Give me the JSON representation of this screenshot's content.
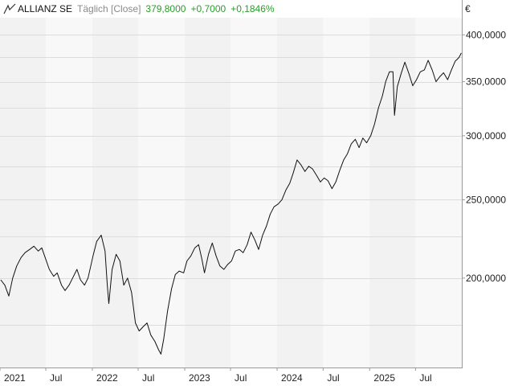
{
  "header": {
    "instrument": "ALLIANZ SE",
    "interval": "Täglich [Close]",
    "price": "379,8000",
    "change": "+0,7000",
    "change_pct": "+0,1846%",
    "chart_icon": "line-chart-icon",
    "positive_color": "#2a9c2a"
  },
  "chart_data": {
    "type": "line",
    "currency": "€",
    "y_scale": "log",
    "ylim": [
      155,
      420
    ],
    "xlim": [
      "2021-01-01",
      "2025-12-31"
    ],
    "y_ticks": [
      {
        "value": 200,
        "label": "200,0000"
      },
      {
        "value": 250,
        "label": "250,0000"
      },
      {
        "value": 300,
        "label": "300,0000"
      },
      {
        "value": 350,
        "label": "350,0000"
      },
      {
        "value": 400,
        "label": "400,0000"
      }
    ],
    "x_ticks": [
      {
        "date": "2021-01-01",
        "label": "2021"
      },
      {
        "date": "2021-07-01",
        "label": "Jul"
      },
      {
        "date": "2022-01-01",
        "label": "2022"
      },
      {
        "date": "2022-07-01",
        "label": "Jul"
      },
      {
        "date": "2023-01-01",
        "label": "2023"
      },
      {
        "date": "2023-07-01",
        "label": "Jul"
      },
      {
        "date": "2024-01-01",
        "label": "2024"
      },
      {
        "date": "2024-07-01",
        "label": "Jul"
      },
      {
        "date": "2025-01-01",
        "label": "2025"
      },
      {
        "date": "2025-07-01",
        "label": "Jul"
      }
    ],
    "grid": true,
    "series": [
      {
        "line_color": "#111111",
        "points": [
          [
            "2021-01-04",
            199
          ],
          [
            "2021-01-20",
            196
          ],
          [
            "2021-02-05",
            190
          ],
          [
            "2021-02-20",
            200
          ],
          [
            "2021-03-08",
            207
          ],
          [
            "2021-03-25",
            212
          ],
          [
            "2021-04-10",
            215
          ],
          [
            "2021-04-28",
            217
          ],
          [
            "2021-05-15",
            219
          ],
          [
            "2021-06-01",
            216
          ],
          [
            "2021-06-15",
            218
          ],
          [
            "2021-07-01",
            211
          ],
          [
            "2021-07-15",
            205
          ],
          [
            "2021-08-01",
            201
          ],
          [
            "2021-08-15",
            203
          ],
          [
            "2021-09-01",
            196
          ],
          [
            "2021-09-15",
            193
          ],
          [
            "2021-10-01",
            196
          ],
          [
            "2021-10-15",
            200
          ],
          [
            "2021-11-01",
            205
          ],
          [
            "2021-11-15",
            199
          ],
          [
            "2021-12-01",
            196
          ],
          [
            "2021-12-15",
            200
          ],
          [
            "2022-01-05",
            214
          ],
          [
            "2022-01-18",
            222
          ],
          [
            "2022-02-05",
            226
          ],
          [
            "2022-02-20",
            216
          ],
          [
            "2022-03-01",
            196
          ],
          [
            "2022-03-07",
            186
          ],
          [
            "2022-03-20",
            205
          ],
          [
            "2022-04-05",
            214
          ],
          [
            "2022-04-20",
            210
          ],
          [
            "2022-05-05",
            196
          ],
          [
            "2022-05-20",
            200
          ],
          [
            "2022-06-05",
            192
          ],
          [
            "2022-06-20",
            176
          ],
          [
            "2022-07-05",
            172
          ],
          [
            "2022-07-20",
            174
          ],
          [
            "2022-08-05",
            176
          ],
          [
            "2022-08-20",
            170
          ],
          [
            "2022-09-05",
            167
          ],
          [
            "2022-09-20",
            163
          ],
          [
            "2022-09-29",
            161
          ],
          [
            "2022-10-10",
            168
          ],
          [
            "2022-10-25",
            182
          ],
          [
            "2022-11-10",
            194
          ],
          [
            "2022-11-25",
            202
          ],
          [
            "2022-12-10",
            204
          ],
          [
            "2022-12-28",
            203
          ],
          [
            "2023-01-10",
            210
          ],
          [
            "2023-01-25",
            213
          ],
          [
            "2023-02-10",
            218
          ],
          [
            "2023-02-25",
            220
          ],
          [
            "2023-03-10",
            211
          ],
          [
            "2023-03-20",
            203
          ],
          [
            "2023-04-05",
            214
          ],
          [
            "2023-04-20",
            221
          ],
          [
            "2023-05-05",
            213
          ],
          [
            "2023-05-20",
            207
          ],
          [
            "2023-06-05",
            205
          ],
          [
            "2023-06-20",
            208
          ],
          [
            "2023-07-05",
            210
          ],
          [
            "2023-07-20",
            216
          ],
          [
            "2023-08-05",
            217
          ],
          [
            "2023-08-20",
            215
          ],
          [
            "2023-09-05",
            220
          ],
          [
            "2023-09-20",
            228
          ],
          [
            "2023-10-05",
            223
          ],
          [
            "2023-10-20",
            217
          ],
          [
            "2023-11-05",
            226
          ],
          [
            "2023-11-20",
            232
          ],
          [
            "2023-12-05",
            240
          ],
          [
            "2023-12-20",
            245
          ],
          [
            "2024-01-05",
            247
          ],
          [
            "2024-01-20",
            250
          ],
          [
            "2024-02-05",
            257
          ],
          [
            "2024-02-20",
            262
          ],
          [
            "2024-03-05",
            270
          ],
          [
            "2024-03-20",
            280
          ],
          [
            "2024-04-05",
            276
          ],
          [
            "2024-04-20",
            271
          ],
          [
            "2024-05-05",
            275
          ],
          [
            "2024-05-20",
            273
          ],
          [
            "2024-06-05",
            268
          ],
          [
            "2024-06-20",
            263
          ],
          [
            "2024-07-05",
            266
          ],
          [
            "2024-07-20",
            264
          ],
          [
            "2024-08-05",
            258
          ],
          [
            "2024-08-20",
            263
          ],
          [
            "2024-09-05",
            272
          ],
          [
            "2024-09-20",
            280
          ],
          [
            "2024-10-05",
            285
          ],
          [
            "2024-10-20",
            293
          ],
          [
            "2024-11-05",
            297
          ],
          [
            "2024-11-20",
            290
          ],
          [
            "2024-12-05",
            298
          ],
          [
            "2024-12-20",
            294
          ],
          [
            "2025-01-05",
            300
          ],
          [
            "2025-01-20",
            310
          ],
          [
            "2025-02-05",
            325
          ],
          [
            "2025-02-20",
            336
          ],
          [
            "2025-03-05",
            350
          ],
          [
            "2025-03-20",
            360
          ],
          [
            "2025-04-03",
            360
          ],
          [
            "2025-04-09",
            318
          ],
          [
            "2025-04-20",
            345
          ],
          [
            "2025-05-05",
            358
          ],
          [
            "2025-05-20",
            370
          ],
          [
            "2025-06-05",
            358
          ],
          [
            "2025-06-20",
            346
          ],
          [
            "2025-07-05",
            352
          ],
          [
            "2025-07-20",
            360
          ],
          [
            "2025-08-05",
            362
          ],
          [
            "2025-08-20",
            372
          ],
          [
            "2025-09-05",
            362
          ],
          [
            "2025-09-20",
            350
          ],
          [
            "2025-10-05",
            355
          ],
          [
            "2025-10-20",
            359
          ],
          [
            "2025-11-05",
            352
          ],
          [
            "2025-11-20",
            362
          ],
          [
            "2025-12-05",
            371
          ],
          [
            "2025-12-20",
            375
          ],
          [
            "2025-12-29",
            379.8
          ]
        ]
      }
    ]
  }
}
